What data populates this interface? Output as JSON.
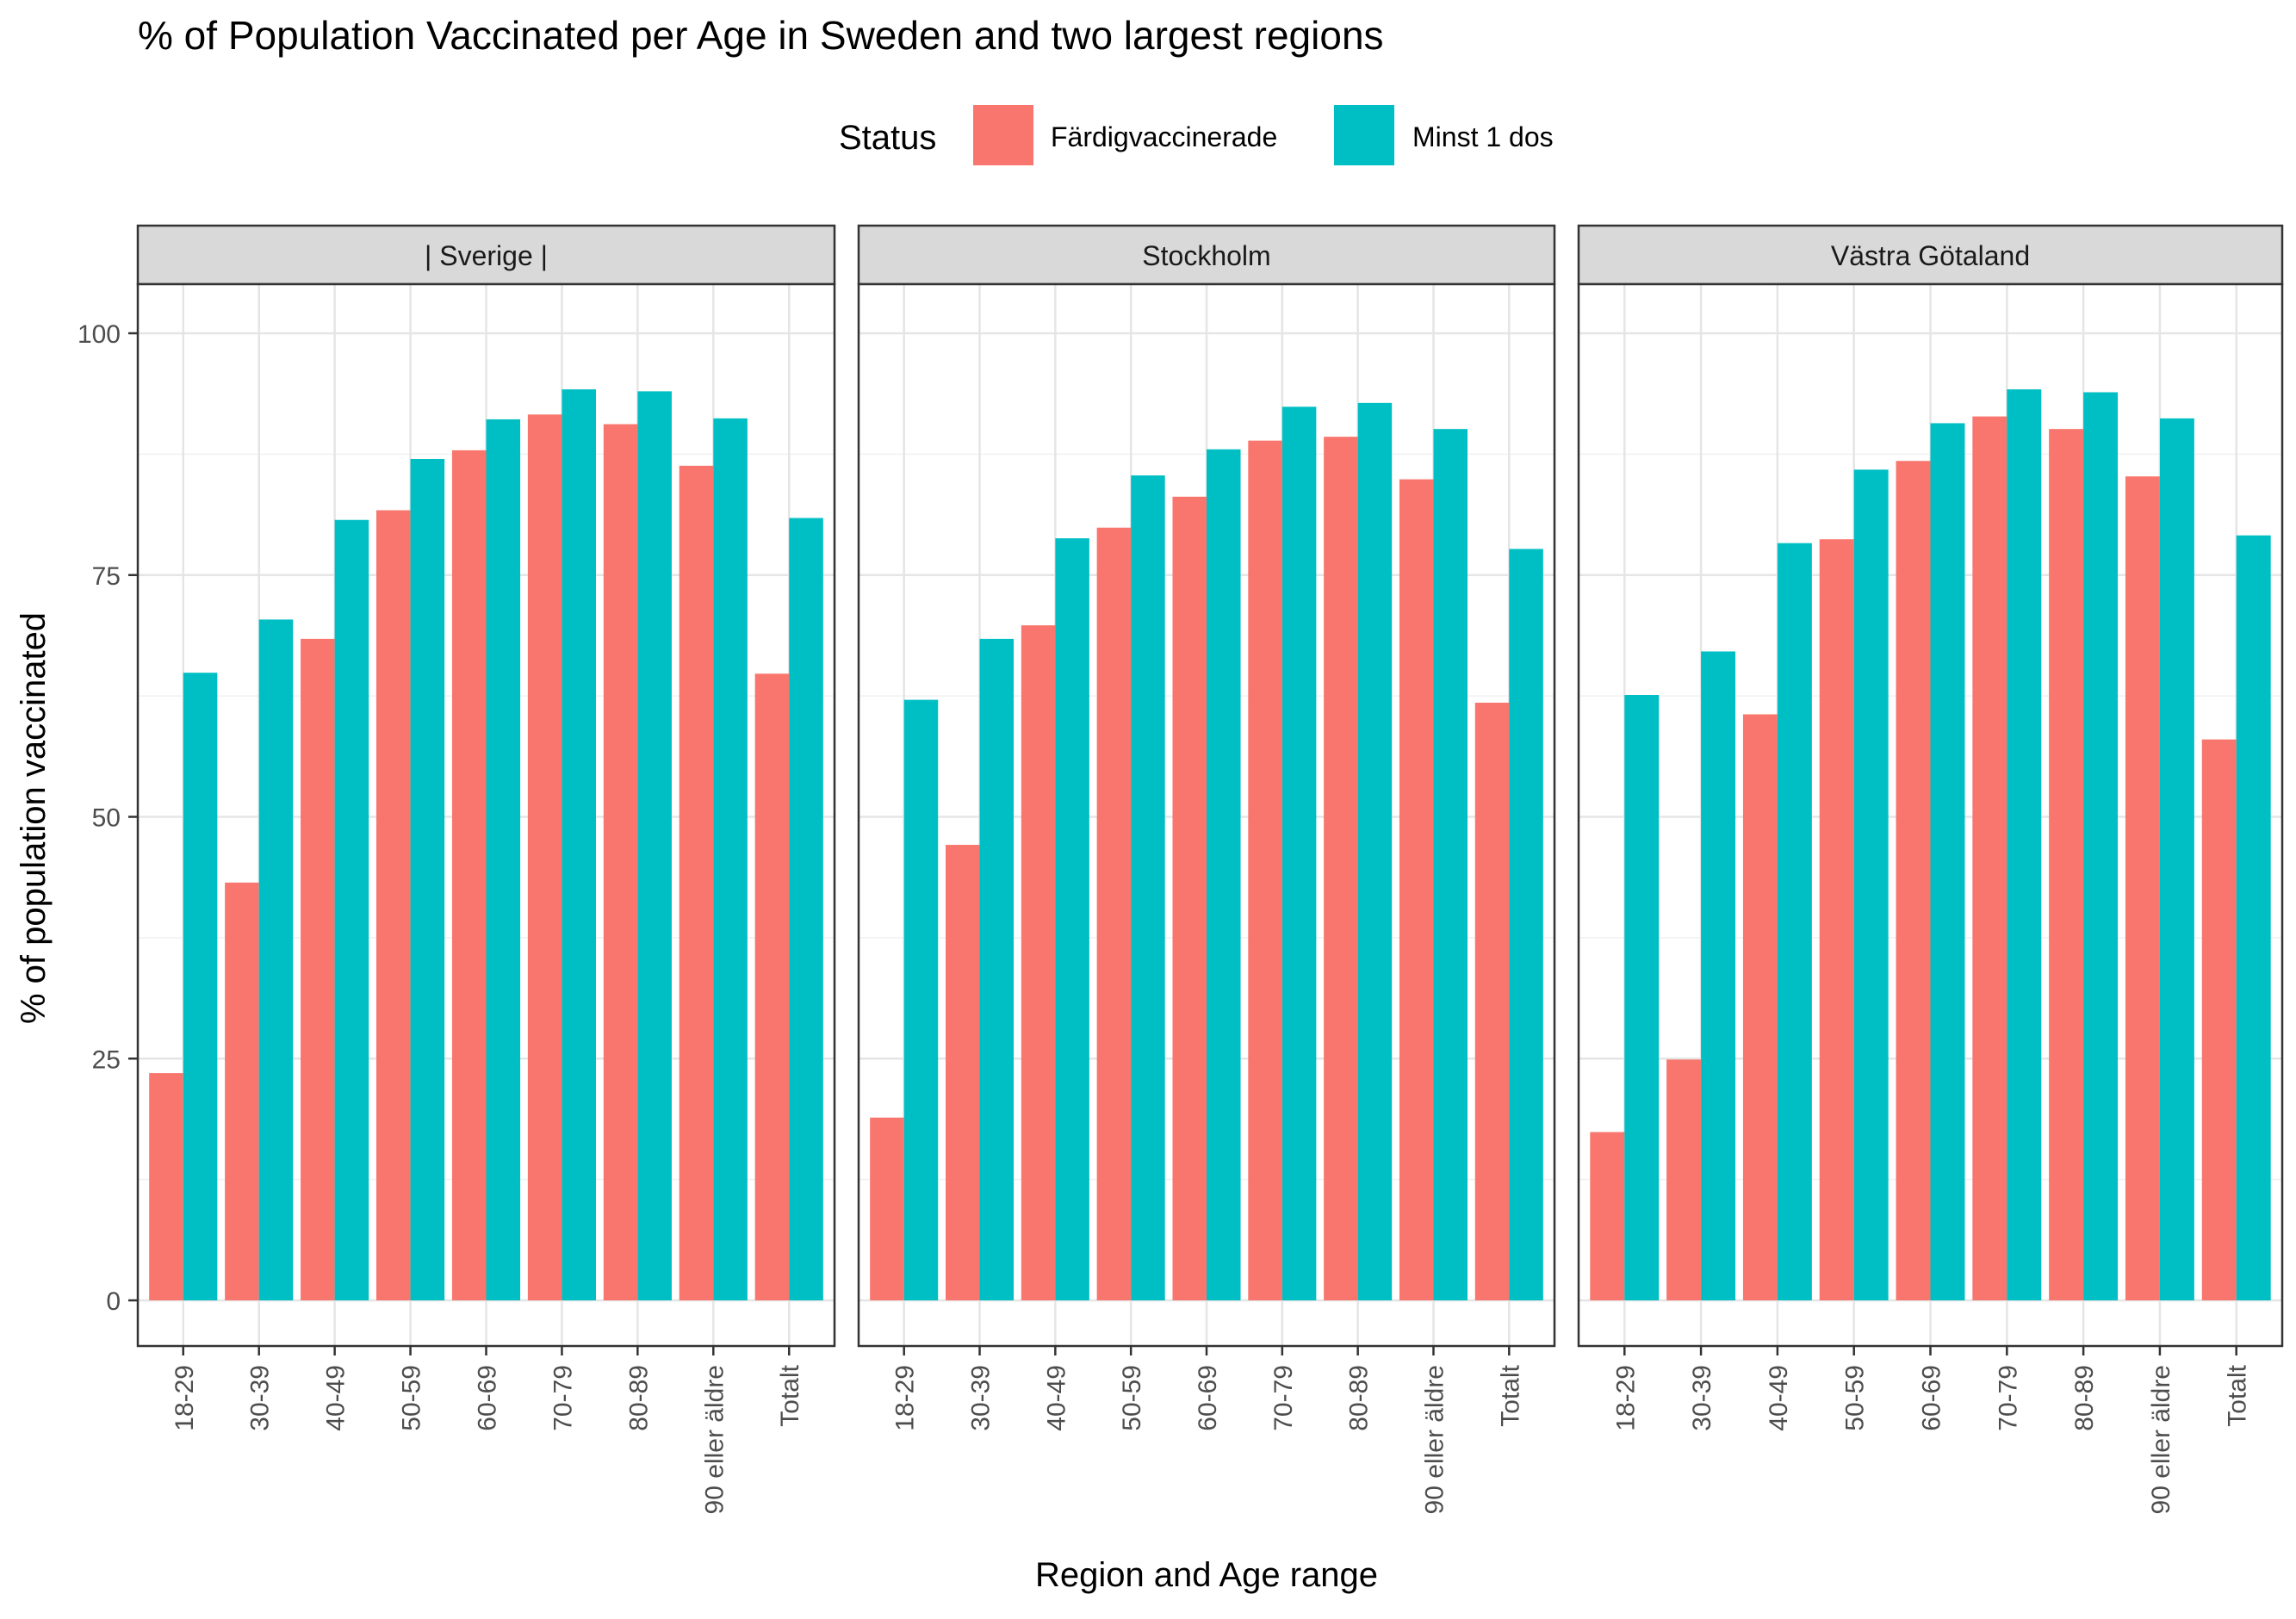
{
  "chart_data": {
    "type": "bar",
    "title": "% of Population Vaccinated per Age in Sweden and two largest regions",
    "xlabel": "Region and Age range",
    "ylabel": "% of population vaccinated",
    "ylim": [
      0,
      100
    ],
    "yticks": [
      0,
      25,
      50,
      75,
      100
    ],
    "grid": true,
    "legend": {
      "title": "Status",
      "placement": "top",
      "entries": [
        "Färdigvaccinerade",
        "Minst 1 dos"
      ]
    },
    "colors": {
      "Färdigvaccinerade": "#F8766D",
      "Minst 1 dos": "#00BFC4"
    },
    "categories": [
      "18-29",
      "30-39",
      "40-49",
      "50-59",
      "60-69",
      "70-79",
      "80-89",
      "90 eller äldre",
      "Totalt"
    ],
    "panels": [
      {
        "name": "| Sverige |",
        "series": [
          {
            "name": "Färdigvaccinerade",
            "values": [
              23.5,
              43.2,
              68.4,
              81.7,
              87.9,
              91.6,
              90.6,
              86.3,
              64.8
            ]
          },
          {
            "name": "Minst 1 dos",
            "values": [
              64.9,
              70.4,
              80.7,
              87.0,
              91.1,
              94.2,
              94.0,
              91.2,
              80.9
            ]
          }
        ]
      },
      {
        "name": "Stockholm",
        "series": [
          {
            "name": "Färdigvaccinerade",
            "values": [
              18.9,
              47.1,
              69.8,
              79.9,
              83.1,
              88.9,
              89.3,
              84.9,
              61.8
            ]
          },
          {
            "name": "Minst 1 dos",
            "values": [
              62.1,
              68.4,
              78.8,
              85.3,
              88.0,
              92.4,
              92.8,
              90.1,
              77.7
            ]
          }
        ]
      },
      {
        "name": "Västra Götaland",
        "series": [
          {
            "name": "Färdigvaccinerade",
            "values": [
              17.4,
              24.9,
              60.6,
              78.7,
              86.8,
              91.4,
              90.1,
              85.2,
              58.0
            ]
          },
          {
            "name": "Minst 1 dos",
            "values": [
              62.6,
              67.1,
              78.3,
              85.9,
              90.7,
              94.2,
              93.9,
              91.2,
              79.1
            ]
          }
        ]
      }
    ]
  }
}
